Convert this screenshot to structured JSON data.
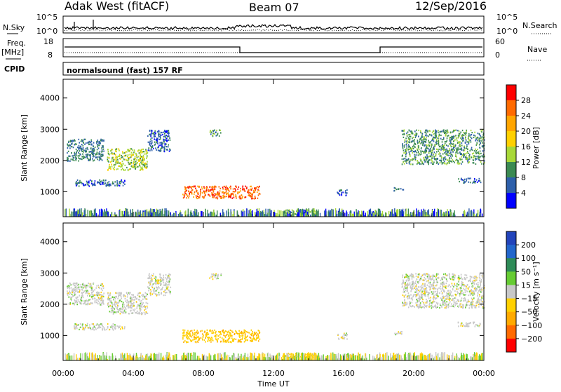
{
  "header": {
    "station": "Adak West (fitACF)",
    "beam": "Beam 07",
    "date": "12/Sep/2016"
  },
  "left_labels": {
    "nsky": "N.Sky",
    "freq": "Freq.",
    "freq_unit": "[MHz]",
    "cpid": "CPID"
  },
  "right_labels": {
    "nsearch": "N.Search",
    "nave": "Nave"
  },
  "noise_panel": {
    "left_ticks": [
      "10^5",
      "10^0"
    ],
    "right_ticks": [
      "10^5",
      "10^0"
    ]
  },
  "freq_panel": {
    "left_ticks": [
      "18",
      "8"
    ],
    "right_ticks": [
      "60",
      "0"
    ]
  },
  "cpid_text": "normalsound (fast) 157 RF",
  "colorbar_power": {
    "label": "Power [dB]",
    "ticks": [
      "28",
      "24",
      "20",
      "16",
      "12",
      "8",
      "4"
    ],
    "colors": [
      "#ff0000",
      "#ff6a00",
      "#ffa500",
      "#ffd000",
      "#a8d838",
      "#3b8a52",
      "#2d5faa",
      "#0000ff"
    ]
  },
  "colorbar_velocity": {
    "label": "Velocity [m s⁻¹]",
    "ticks": [
      "200",
      "100",
      "50",
      "15",
      "−15",
      "−50",
      "−100",
      "−200"
    ],
    "colors": [
      "#2244bb",
      "#2266cc",
      "#2e8b57",
      "#66cc33",
      "#c8c8c8",
      "#ffd000",
      "#ffaa00",
      "#ff6a00",
      "#ff0000"
    ]
  },
  "chart_data": [
    {
      "type": "heatmap",
      "name": "Power",
      "ylabel": "Slant Range [km]",
      "xlabel": "Time UT",
      "x_ticks": [
        "00:00",
        "04:00",
        "08:00",
        "12:00",
        "16:00",
        "20:00",
        "00:00"
      ],
      "y_ticks": [
        "1000",
        "2000",
        "3000",
        "4000"
      ],
      "ylim": [
        200,
        4600
      ],
      "regions": [
        {
          "t0": 0.2,
          "t1": 2.3,
          "r0": 2000,
          "r1": 2700,
          "level": 8
        },
        {
          "t0": 2.5,
          "t1": 4.8,
          "r0": 1700,
          "r1": 2400,
          "level": 14
        },
        {
          "t0": 4.8,
          "t1": 6.1,
          "r0": 2300,
          "r1": 3000,
          "level": 6
        },
        {
          "t0": 0.6,
          "t1": 3.5,
          "r0": 1200,
          "r1": 1400,
          "level": 6
        },
        {
          "t0": 6.8,
          "t1": 11.2,
          "r0": 800,
          "r1": 1200,
          "level": 26
        },
        {
          "t0": 8.3,
          "t1": 9.0,
          "r0": 2800,
          "r1": 3000,
          "level": 10
        },
        {
          "t0": 12.5,
          "t1": 14.5,
          "r0": 300,
          "r1": 450,
          "level": 12
        },
        {
          "t0": 15.6,
          "t1": 16.2,
          "r0": 900,
          "r1": 1100,
          "level": 6
        },
        {
          "t0": 19.3,
          "t1": 24.0,
          "r0": 1900,
          "r1": 3000,
          "level": 10
        },
        {
          "t0": 22.5,
          "t1": 23.8,
          "r0": 1300,
          "r1": 1450,
          "level": 6
        },
        {
          "t0": 18.8,
          "t1": 19.4,
          "r0": 1050,
          "r1": 1150,
          "level": 8
        }
      ]
    },
    {
      "type": "heatmap",
      "name": "Velocity",
      "ylabel": "Slant Range [km]",
      "xlabel": "Time UT",
      "x_ticks": [
        "00:00",
        "04:00",
        "08:00",
        "12:00",
        "16:00",
        "20:00",
        "00:00"
      ],
      "y_ticks": [
        "1000",
        "2000",
        "3000",
        "4000"
      ],
      "ylim": [
        200,
        4600
      ],
      "regions": [
        {
          "t0": 0.2,
          "t1": 2.3,
          "r0": 2000,
          "r1": 2700,
          "v": 0
        },
        {
          "t0": 2.5,
          "t1": 4.8,
          "r0": 1700,
          "r1": 2400,
          "v": 0
        },
        {
          "t0": 4.8,
          "t1": 6.1,
          "r0": 2300,
          "r1": 3000,
          "v": 0
        },
        {
          "t0": 0.6,
          "t1": 3.5,
          "r0": 1200,
          "r1": 1400,
          "v": 0
        },
        {
          "t0": 6.8,
          "t1": 11.2,
          "r0": 800,
          "r1": 1200,
          "v": -40
        },
        {
          "t0": 8.3,
          "t1": 9.0,
          "r0": 2800,
          "r1": 3000,
          "v": 0
        },
        {
          "t0": 12.5,
          "t1": 14.5,
          "r0": 300,
          "r1": 450,
          "v": -30
        },
        {
          "t0": 15.6,
          "t1": 16.2,
          "r0": 900,
          "r1": 1100,
          "v": 0
        },
        {
          "t0": 19.3,
          "t1": 24.0,
          "r0": 1900,
          "r1": 3000,
          "v": 0
        },
        {
          "t0": 22.5,
          "t1": 23.8,
          "r0": 1300,
          "r1": 1450,
          "v": 0
        },
        {
          "t0": 18.8,
          "t1": 19.4,
          "r0": 1050,
          "r1": 1150,
          "v": 0
        }
      ]
    }
  ]
}
